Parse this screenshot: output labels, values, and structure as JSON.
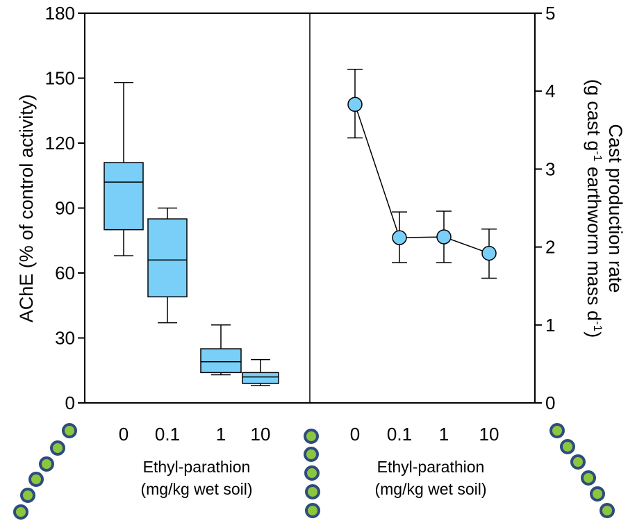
{
  "colors": {
    "box_fill": "#79CFF8",
    "point_fill": "#79CFF8",
    "bead_fill": "#8CC63F",
    "bead_stroke": "#2E4C7E"
  },
  "chart_data": [
    {
      "type": "box",
      "ylabel": "AChE (% of control activity)",
      "xlabel_line1": "Ethyl-parathion",
      "xlabel_line2": "(mg/kg wet soil)",
      "categories": [
        "0",
        "0.1",
        "1",
        "10"
      ],
      "y_ticks": [
        "0",
        "30",
        "60",
        "90",
        "120",
        "150",
        "180"
      ],
      "ylim": [
        0,
        180
      ],
      "boxes": [
        {
          "whisker_low": 68,
          "q1": 80,
          "median": 102,
          "q3": 111,
          "whisker_high": 148
        },
        {
          "whisker_low": 37,
          "q1": 49,
          "median": 66,
          "q3": 85,
          "whisker_high": 90
        },
        {
          "whisker_low": 13,
          "q1": 14,
          "median": 19,
          "q3": 25,
          "whisker_high": 36
        },
        {
          "whisker_low": 8,
          "q1": 9,
          "median": 12,
          "q3": 14,
          "whisker_high": 20
        }
      ]
    },
    {
      "type": "line",
      "ylabel_line1": "Cast production rate",
      "ylabel_line2_pre": "(g cast g",
      "ylabel_line2_sup1": "-1",
      "ylabel_line2_mid": " earthworm mass d",
      "ylabel_line2_sup2": "-1",
      "ylabel_line2_post": ")",
      "xlabel_line1": "Ethyl-parathion",
      "xlabel_line2": "(mg/kg wet soil)",
      "categories": [
        "0",
        "0.1",
        "1",
        "10"
      ],
      "y_ticks": [
        "0",
        "1",
        "2",
        "3",
        "4",
        "5"
      ],
      "ylim": [
        0,
        5
      ],
      "values": [
        3.83,
        2.12,
        2.13,
        1.92
      ],
      "error_low": [
        3.4,
        1.8,
        1.8,
        1.6
      ],
      "error_high": [
        4.28,
        2.45,
        2.46,
        2.23
      ]
    }
  ]
}
